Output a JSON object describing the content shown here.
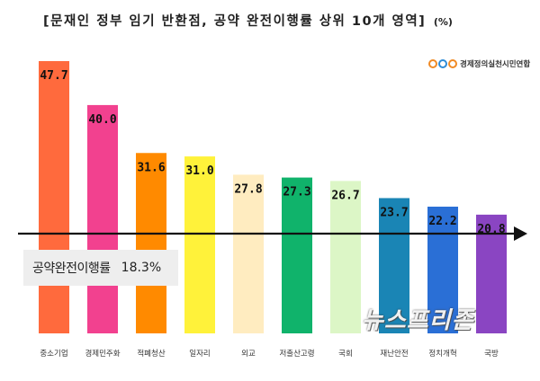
{
  "title": "[문재인 정부 임기 반환점, 공약 완전이행률 상위 10개 영역]",
  "title_unit": "(%)",
  "logo_text": "경제정의실천시민연합",
  "summary": {
    "label": "공약완전이행률",
    "value": "18.3%"
  },
  "watermark": "뉴스프리존",
  "chart_data": {
    "type": "bar",
    "title": "[문재인 정부 임기 반환점, 공약 완전이행률 상위 10개 영역]",
    "unit": "%",
    "categories": [
      "중소기업",
      "경제민주화",
      "적폐청산",
      "일자리",
      "외교",
      "저출산고령",
      "국회",
      "재난안전",
      "정치개혁",
      "국방"
    ],
    "values": [
      47.7,
      40.0,
      31.6,
      31.0,
      27.8,
      27.3,
      26.7,
      23.7,
      22.2,
      20.8
    ],
    "value_labels": [
      "47.7",
      "40.0",
      "31.6",
      "31.0",
      "27.8",
      "27.3",
      "26.7",
      "23.7",
      "22.2",
      "20.8"
    ],
    "colors": [
      "#ff6a3d",
      "#f2418f",
      "#ff8a00",
      "#fff23a",
      "#ffecc0",
      "#10b36b",
      "#dcf6c6",
      "#1a85b5",
      "#2a6fd6",
      "#8a45c2"
    ],
    "ylim": [
      0,
      50
    ],
    "grid": false,
    "legend": "none"
  }
}
